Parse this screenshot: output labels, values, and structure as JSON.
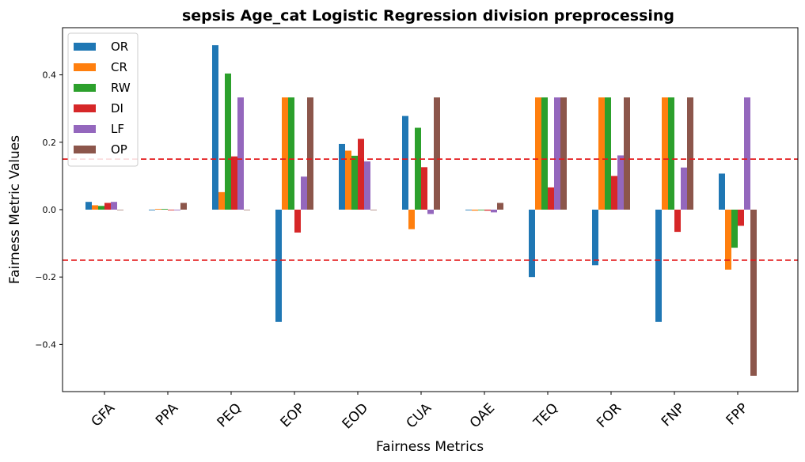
{
  "chart_data": {
    "type": "bar",
    "title": "sepsis Age_cat Logistic Regression division preprocessing",
    "xlabel": "Fairness Metrics",
    "ylabel": "Fairness Metric Values",
    "categories": [
      "GFA",
      "PPA",
      "PEQ",
      "EOP",
      "EOD",
      "CUA",
      "OAE",
      "TEQ",
      "FOR",
      "FNP",
      "FPP"
    ],
    "ylim": [
      -0.54,
      0.54
    ],
    "yticks": [
      -0.4,
      -0.2,
      0.0,
      0.2,
      0.4
    ],
    "ytick_labels": [
      "−0.4",
      "−0.2",
      "0.0",
      "0.2",
      "0.4"
    ],
    "threshold_lines": [
      0.15,
      -0.15
    ],
    "threshold_color": "#e31a1c",
    "legend_position": "top-left",
    "grid": false,
    "series": [
      {
        "name": "OR",
        "color": "#1f77b4",
        "values": [
          0.023,
          -0.002,
          0.488,
          -0.333,
          0.195,
          0.278,
          -0.002,
          -0.2,
          -0.165,
          -0.333,
          0.107
        ]
      },
      {
        "name": "CR",
        "color": "#ff7f0e",
        "values": [
          0.013,
          0.002,
          0.052,
          0.333,
          0.175,
          -0.058,
          -0.003,
          0.333,
          0.333,
          0.333,
          -0.178
        ]
      },
      {
        "name": "RW",
        "color": "#2ca02c",
        "values": [
          0.011,
          0.002,
          0.404,
          0.333,
          0.16,
          0.243,
          -0.002,
          0.333,
          0.333,
          0.333,
          -0.113
        ]
      },
      {
        "name": "DI",
        "color": "#d62728",
        "values": [
          0.02,
          -0.002,
          0.158,
          -0.068,
          0.21,
          0.126,
          -0.003,
          0.066,
          0.1,
          -0.066,
          -0.048
        ]
      },
      {
        "name": "LF",
        "color": "#9467bd",
        "values": [
          0.023,
          -0.002,
          0.333,
          0.098,
          0.143,
          -0.013,
          -0.008,
          0.333,
          0.161,
          0.125,
          0.333
        ]
      },
      {
        "name": "OP",
        "color": "#8c564b",
        "values": [
          0.0,
          0.02,
          0.0,
          0.333,
          0.0,
          0.333,
          0.02,
          0.333,
          0.333,
          0.333,
          -0.493
        ]
      }
    ]
  }
}
